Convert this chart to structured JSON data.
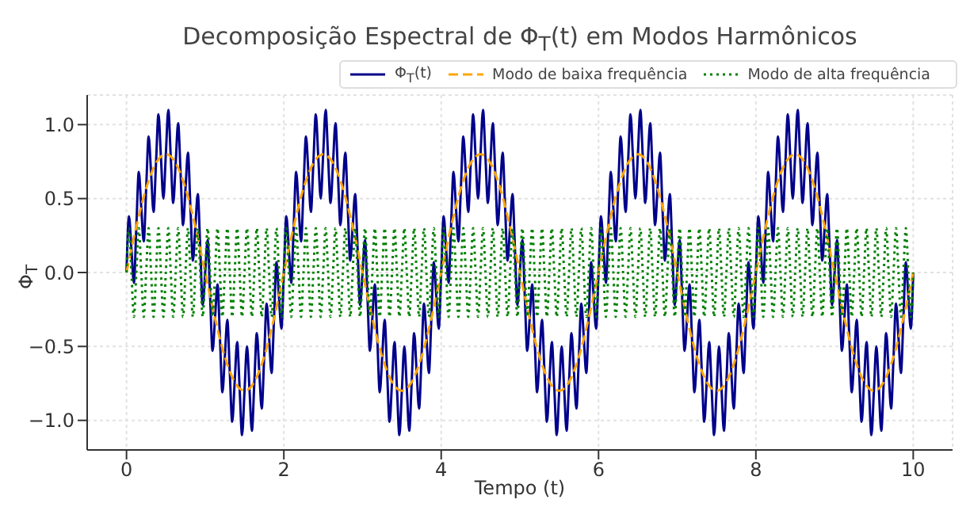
{
  "chart_data": {
    "type": "line",
    "title": "Decomposição Espectral de Φ$_{T}$(t) em Modos Harmônicos",
    "xlabel": "Tempo (t)",
    "ylabel": "Φ$_{T}$",
    "xlim": [
      -0.5,
      10.5
    ],
    "ylim": [
      -1.2,
      1.2
    ],
    "xticks": [
      0,
      2,
      4,
      6,
      8,
      10
    ],
    "yticks": [
      {
        "value": -1,
        "label": "−1.0"
      },
      {
        "value": -0.5,
        "label": "−0.5"
      },
      {
        "value": 0,
        "label": "0.0"
      },
      {
        "value": 0.5,
        "label": "0.5"
      },
      {
        "value": 1,
        "label": "1.0"
      }
    ],
    "grid": true,
    "legend": "top right",
    "x": [
      0,
      0.03125,
      0.0625,
      0.09375,
      0.125,
      0.15625,
      0.1875,
      0.21875,
      0.25,
      0.28125,
      0.3125,
      0.34375,
      0.375,
      0.40625,
      0.4375,
      0.46875,
      0.5,
      0.53125,
      0.5625,
      0.59375,
      0.625,
      0.65625,
      0.6875,
      0.71875,
      0.75,
      0.78125,
      0.8125,
      0.84375,
      0.875,
      0.90625,
      0.9375,
      0.96875,
      1,
      1.03125,
      1.0625,
      1.09375,
      1.125,
      1.15625,
      1.1875,
      1.21875,
      1.25,
      1.28125,
      1.3125,
      1.34375,
      1.375,
      1.40625,
      1.4375,
      1.46875,
      1.5,
      1.53125,
      1.5625,
      1.59375,
      1.625,
      1.65625,
      1.6875,
      1.71875,
      1.75,
      1.78125,
      1.8125,
      1.84375,
      1.875,
      1.90625,
      1.9375,
      1.96875,
      2,
      2.03125,
      2.0625,
      2.09375,
      2.125,
      2.15625,
      2.1875,
      2.21875,
      2.25,
      2.28125,
      2.3125,
      2.34375,
      2.375,
      2.40625,
      2.4375,
      2.46875,
      2.5,
      2.53125,
      2.5625,
      2.59375,
      2.625,
      2.65625,
      2.6875,
      2.71875,
      2.75,
      2.78125,
      2.8125,
      2.84375,
      2.875,
      2.90625,
      2.9375,
      2.96875,
      3,
      3.03125,
      3.0625,
      3.09375,
      3.125,
      3.15625,
      3.1875,
      3.21875,
      3.25,
      3.28125,
      3.3125,
      3.34375,
      3.375,
      3.40625,
      3.4375,
      3.46875,
      3.5,
      3.53125,
      3.5625,
      3.59375,
      3.625,
      3.65625,
      3.6875,
      3.71875,
      3.75,
      3.78125,
      3.8125,
      3.84375,
      3.875,
      3.90625,
      3.9375,
      3.96875,
      4,
      4.03125,
      4.0625,
      4.09375,
      4.125,
      4.15625,
      4.1875,
      4.21875,
      4.25,
      4.28125,
      4.3125,
      4.34375,
      4.375,
      4.40625,
      4.4375,
      4.46875,
      4.5,
      4.53125,
      4.5625,
      4.59375,
      4.625,
      4.65625,
      4.6875,
      4.71875,
      4.75,
      4.78125,
      4.8125,
      4.84375,
      4.875,
      4.90625,
      4.9375,
      4.96875,
      5,
      5.03125,
      5.0625,
      5.09375,
      5.125,
      5.15625,
      5.1875,
      5.21875,
      5.25,
      5.28125,
      5.3125,
      5.34375,
      5.375,
      5.40625,
      5.4375,
      5.46875,
      5.5,
      5.53125,
      5.5625,
      5.59375,
      5.625,
      5.65625,
      5.6875,
      5.71875,
      5.75,
      5.78125,
      5.8125,
      5.84375,
      5.875,
      5.90625,
      5.9375,
      5.96875,
      6,
      6.03125,
      6.0625,
      6.09375,
      6.125,
      6.15625,
      6.1875,
      6.21875,
      6.25,
      6.28125,
      6.3125,
      6.34375,
      6.375,
      6.40625,
      6.4375,
      6.46875,
      6.5,
      6.53125,
      6.5625,
      6.59375,
      6.625,
      6.65625,
      6.6875,
      6.71875,
      6.75,
      6.78125,
      6.8125,
      6.84375,
      6.875,
      6.90625,
      6.9375,
      6.96875,
      7,
      7.03125,
      7.0625,
      7.09375,
      7.125,
      7.15625,
      7.1875,
      7.21875,
      7.25,
      7.28125,
      7.3125,
      7.34375,
      7.375,
      7.40625,
      7.4375,
      7.46875,
      7.5,
      7.53125,
      7.5625,
      7.59375,
      7.625,
      7.65625,
      7.6875,
      7.71875,
      7.75,
      7.78125,
      7.8125,
      7.84375,
      7.875,
      7.90625,
      7.9375,
      7.96875,
      8,
      8.03125,
      8.0625,
      8.09375,
      8.125,
      8.15625,
      8.1875,
      8.21875,
      8.25,
      8.28125,
      8.3125,
      8.34375,
      8.375,
      8.40625,
      8.4375,
      8.46875,
      8.5,
      8.53125,
      8.5625,
      8.59375,
      8.625,
      8.65625,
      8.6875,
      8.71875,
      8.75,
      8.78125,
      8.8125,
      8.84375,
      8.875,
      8.90625,
      8.9375,
      8.96875,
      9,
      9.03125,
      9.0625,
      9.09375,
      9.125,
      9.15625,
      9.1875,
      9.21875,
      9.25,
      9.28125,
      9.3125,
      9.34375,
      9.375,
      9.40625,
      9.4375,
      9.46875,
      9.5,
      9.53125,
      9.5625,
      9.59375,
      9.625,
      9.65625,
      9.6875,
      9.71875,
      9.75,
      9.78125,
      9.8125,
      9.84375,
      9.875,
      9.90625,
      9.9375,
      9.96875,
      10
    ],
    "series": [
      {
        "name": "Φ$_{T}$(t)",
        "color": "#00008b",
        "line_style": "solid",
        "values": [
          0,
          0.38,
          0.16,
          -0.07,
          0.31,
          0.68,
          0.44,
          0.21,
          0.57,
          0.92,
          0.67,
          0.41,
          0.74,
          1.07,
          0.78,
          0.5,
          0.8,
          1.1,
          0.78,
          0.47,
          0.74,
          1.01,
          0.67,
          0.32,
          0.57,
          0.81,
          0.44,
          0.08,
          0.31,
          0.53,
          0.16,
          -0.22,
          0,
          0.22,
          -0.16,
          -0.53,
          -0.31,
          -0.08,
          -0.44,
          -0.81,
          -0.57,
          -0.32,
          -0.67,
          -1.01,
          -0.74,
          -0.47,
          -0.78,
          -1.1,
          -0.8,
          -0.5,
          -0.78,
          -1.07,
          -0.74,
          -0.41,
          -0.67,
          -0.92,
          -0.57,
          -0.21,
          -0.44,
          -0.68,
          -0.31,
          0.07,
          -0.16,
          -0.38,
          0,
          0.38,
          0.16,
          -0.07,
          0.31,
          0.68,
          0.44,
          0.21,
          0.57,
          0.92,
          0.67,
          0.41,
          0.74,
          1.07,
          0.78,
          0.5,
          0.8,
          1.1,
          0.78,
          0.47,
          0.74,
          1.01,
          0.67,
          0.32,
          0.57,
          0.81,
          0.44,
          0.08,
          0.31,
          0.53,
          0.16,
          -0.22,
          0,
          0.22,
          -0.16,
          -0.53,
          -0.31,
          -0.08,
          -0.44,
          -0.81,
          -0.57,
          -0.32,
          -0.67,
          -1.01,
          -0.74,
          -0.47,
          -0.78,
          -1.1,
          -0.8,
          -0.5,
          -0.78,
          -1.07,
          -0.74,
          -0.41,
          -0.67,
          -0.92,
          -0.57,
          -0.21,
          -0.44,
          -0.68,
          -0.31,
          0.07,
          -0.16,
          -0.38,
          0,
          0.38,
          0.16,
          -0.07,
          0.31,
          0.68,
          0.44,
          0.21,
          0.57,
          0.92,
          0.67,
          0.41,
          0.74,
          1.07,
          0.78,
          0.5,
          0.8,
          1.1,
          0.78,
          0.47,
          0.74,
          1.01,
          0.67,
          0.32,
          0.57,
          0.81,
          0.44,
          0.08,
          0.31,
          0.53,
          0.16,
          -0.22,
          0,
          0.22,
          -0.16,
          -0.53,
          -0.31,
          -0.08,
          -0.44,
          -0.81,
          -0.57,
          -0.32,
          -0.67,
          -1.01,
          -0.74,
          -0.47,
          -0.78,
          -1.1,
          -0.8,
          -0.5,
          -0.78,
          -1.07,
          -0.74,
          -0.41,
          -0.67,
          -0.92,
          -0.57,
          -0.21,
          -0.44,
          -0.68,
          -0.31,
          0.07,
          -0.16,
          -0.38,
          0,
          0.38,
          0.16,
          -0.07,
          0.31,
          0.68,
          0.44,
          0.21,
          0.57,
          0.92,
          0.67,
          0.41,
          0.74,
          1.07,
          0.78,
          0.5,
          0.8,
          1.1,
          0.78,
          0.47,
          0.74,
          1.01,
          0.67,
          0.32,
          0.57,
          0.81,
          0.44,
          0.08,
          0.31,
          0.53,
          0.16,
          -0.22,
          0,
          0.22,
          -0.16,
          -0.53,
          -0.31,
          -0.08,
          -0.44,
          -0.81,
          -0.57,
          -0.32,
          -0.67,
          -1.01,
          -0.74,
          -0.47,
          -0.78,
          -1.1,
          -0.8,
          -0.5,
          -0.78,
          -1.07,
          -0.74,
          -0.41,
          -0.67,
          -0.92,
          -0.57,
          -0.21,
          -0.44,
          -0.68,
          -0.31,
          0.07,
          -0.16,
          -0.38,
          0,
          0.38,
          0.16,
          -0.07,
          0.31,
          0.68,
          0.44,
          0.21,
          0.57,
          0.92,
          0.67,
          0.41,
          0.74,
          1.07,
          0.78,
          0.5,
          0.8,
          1.1,
          0.78,
          0.47,
          0.74,
          1.01,
          0.67,
          0.32,
          0.57,
          0.81,
          0.44,
          0.08,
          0.31,
          0.53,
          0.16,
          -0.22,
          0,
          0.22,
          -0.16,
          -0.53,
          -0.31,
          -0.08,
          -0.44,
          -0.81,
          -0.57,
          -0.32,
          -0.67,
          -1.01,
          -0.74,
          -0.47,
          -0.78,
          -1.1,
          -0.8,
          -0.5,
          -0.78,
          -1.07,
          -0.74,
          -0.41,
          -0.67,
          -0.92,
          -0.57,
          -0.21,
          -0.44,
          -0.68,
          -0.31,
          0.07,
          -0.16,
          -0.38,
          0
        ]
      },
      {
        "name": "Modo de baixa frequência",
        "color": "#ffa500",
        "line_style": "dashed",
        "x": [
          0,
          0.125,
          0.25,
          0.375,
          0.5,
          0.625,
          0.75,
          0.875,
          1,
          1.125,
          1.25,
          1.375,
          1.5,
          1.625,
          1.75,
          1.875,
          2,
          2.125,
          2.25,
          2.375,
          2.5,
          2.625,
          2.75,
          2.875,
          3,
          3.125,
          3.25,
          3.375,
          3.5,
          3.625,
          3.75,
          3.875,
          4,
          4.125,
          4.25,
          4.375,
          4.5,
          4.625,
          4.75,
          4.875,
          5,
          5.125,
          5.25,
          5.375,
          5.5,
          5.625,
          5.75,
          5.875,
          6,
          6.125,
          6.25,
          6.375,
          6.5,
          6.625,
          6.75,
          6.875,
          7,
          7.125,
          7.25,
          7.375,
          7.5,
          7.625,
          7.75,
          7.875,
          8,
          8.125,
          8.25,
          8.375,
          8.5,
          8.625,
          8.75,
          8.875,
          9,
          9.125,
          9.25,
          9.375,
          9.5,
          9.625,
          9.75,
          9.875,
          10
        ],
        "values": [
          0,
          0.31,
          0.57,
          0.74,
          0.8,
          0.74,
          0.57,
          0.31,
          0,
          -0.31,
          -0.57,
          -0.74,
          -0.8,
          -0.74,
          -0.57,
          -0.31,
          0,
          0.31,
          0.57,
          0.74,
          0.8,
          0.74,
          0.57,
          0.31,
          0,
          -0.31,
          -0.57,
          -0.74,
          -0.8,
          -0.74,
          -0.57,
          -0.31,
          0,
          0.31,
          0.57,
          0.74,
          0.8,
          0.74,
          0.57,
          0.31,
          0,
          -0.31,
          -0.57,
          -0.74,
          -0.8,
          -0.74,
          -0.57,
          -0.31,
          0,
          0.31,
          0.57,
          0.74,
          0.8,
          0.74,
          0.57,
          0.31,
          0,
          -0.31,
          -0.57,
          -0.74,
          -0.8,
          -0.74,
          -0.57,
          -0.31,
          0,
          0.31,
          0.57,
          0.74,
          0.8,
          0.74,
          0.57,
          0.31,
          0,
          -0.31,
          -0.57,
          -0.74,
          -0.8,
          -0.74,
          -0.57,
          -0.31,
          0
        ]
      },
      {
        "name": "Modo de alta frequência",
        "color": "#008000",
        "line_style": "dotted",
        "values": [
          0,
          0.3,
          0,
          -0.3,
          0,
          0.3,
          0,
          -0.3,
          0,
          0.3,
          0,
          -0.3,
          0,
          0.3,
          0,
          -0.3,
          0,
          0.3,
          0,
          -0.3,
          0,
          0.3,
          0,
          -0.3,
          0,
          0.3,
          0,
          -0.3,
          0,
          0.3,
          0,
          -0.3,
          0,
          0.3,
          0,
          -0.3,
          0,
          0.3,
          0,
          -0.3,
          0,
          0.3,
          0,
          -0.3,
          0,
          0.3,
          0,
          -0.3,
          0,
          0.3,
          0,
          -0.3,
          0,
          0.3,
          0,
          -0.3,
          0,
          0.3,
          0,
          -0.3,
          0,
          0.3,
          0,
          -0.3,
          0,
          0.3,
          0,
          -0.3,
          0,
          0.3,
          0,
          -0.3,
          0,
          0.3,
          0,
          -0.3,
          0,
          0.3,
          0,
          -0.3,
          0,
          0.3,
          0,
          -0.3,
          0,
          0.3,
          0,
          -0.3,
          0,
          0.3,
          0,
          -0.3,
          0,
          0.3,
          0,
          -0.3,
          0,
          0.3,
          0,
          -0.3,
          0,
          0.3,
          0,
          -0.3,
          0,
          0.3,
          0,
          -0.3,
          0,
          0.3,
          0,
          -0.3,
          0,
          0.3,
          0,
          -0.3,
          0,
          0.3,
          0,
          -0.3,
          0,
          0.3,
          0,
          -0.3,
          0,
          0.3,
          0,
          -0.3,
          0,
          0.3,
          0,
          -0.3,
          0,
          0.3,
          0,
          -0.3,
          0,
          0.3,
          0,
          -0.3,
          0,
          0.3,
          0,
          -0.3,
          0,
          0.3,
          0,
          -0.3,
          0,
          0.3,
          0,
          -0.3,
          0,
          0.3,
          0,
          -0.3,
          0,
          0.3,
          0,
          -0.3,
          0,
          0.3,
          0,
          -0.3,
          0,
          0.3,
          0,
          -0.3,
          0,
          0.3,
          0,
          -0.3,
          0,
          0.3,
          0,
          -0.3,
          0,
          0.3,
          0,
          -0.3,
          0,
          0.3,
          0,
          -0.3,
          0,
          0.3,
          0,
          -0.3,
          0,
          0.3,
          0,
          -0.3,
          0,
          0.3,
          0,
          -0.3,
          0,
          0.3,
          0,
          -0.3,
          0,
          0.3,
          0,
          -0.3,
          0,
          0.3,
          0,
          -0.3,
          0,
          0.3,
          0,
          -0.3,
          0,
          0.3,
          0,
          -0.3,
          0,
          0.3,
          0,
          -0.3,
          0,
          0.3,
          0,
          -0.3,
          0,
          0.3,
          0,
          -0.3,
          0,
          0.3,
          0,
          -0.3,
          0,
          0.3,
          0,
          -0.3,
          0,
          0.3,
          0,
          -0.3,
          0,
          0.3,
          0,
          -0.3,
          0,
          0.3,
          0,
          -0.3,
          0,
          0.3,
          0,
          -0.3,
          0,
          0.3,
          0,
          -0.3,
          0,
          0.3,
          0,
          -0.3,
          0,
          0.3,
          0,
          -0.3,
          0,
          0.3,
          0,
          -0.3,
          0,
          0.3,
          0,
          -0.3,
          0,
          0.3,
          0,
          -0.3,
          0,
          0.3,
          0,
          -0.3,
          0,
          0.3,
          0,
          -0.3,
          0,
          0.3,
          0,
          -0.3,
          0,
          0.3,
          0,
          -0.3,
          0,
          0.3,
          0,
          -0.3,
          0,
          0.3,
          0,
          -0.3,
          0,
          0.3,
          0,
          -0.3,
          0,
          0.3,
          0,
          -0.3,
          0,
          0.3,
          0,
          -0.3,
          0,
          0.3,
          0,
          -0.3,
          0,
          0.3,
          0,
          -0.3,
          0
        ]
      }
    ]
  }
}
